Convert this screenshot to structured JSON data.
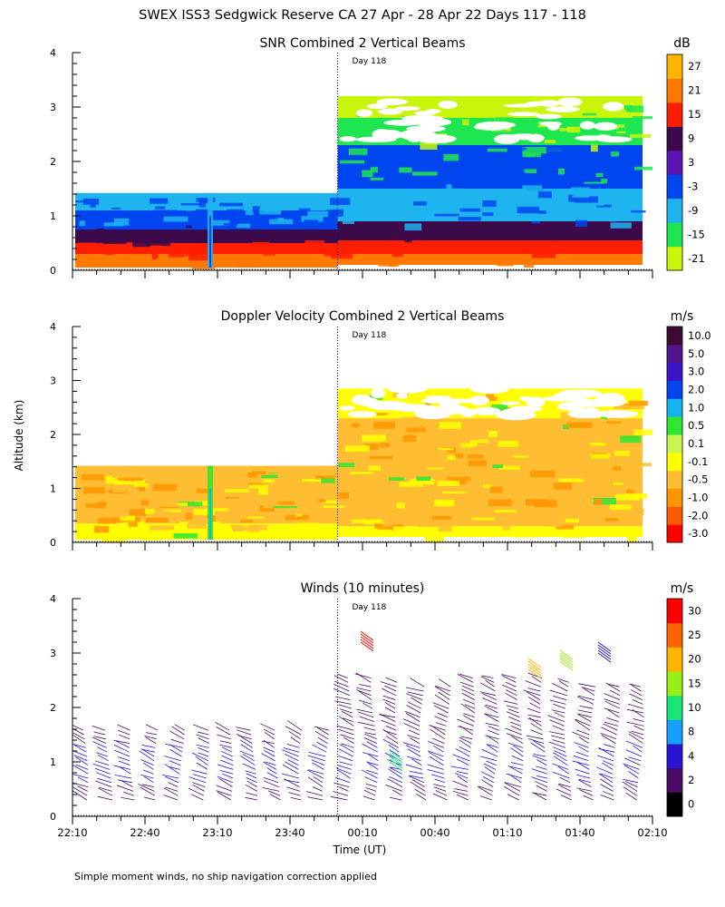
{
  "title": "SWEX ISS3 Sedgwick Reserve CA  27 Apr - 28 Apr 22 Days 117 - 118",
  "ylabel": "Altitude (km)",
  "xlabel": "Time (UT)",
  "footnote": "Simple moment winds, no ship navigation correction applied",
  "day_marker": "Day 118",
  "colors": {
    "snr_scale": [
      "#c8f50a",
      "#1ee650",
      "#1eb4f0",
      "#0046f0",
      "#5a14b4",
      "#3c0a4b",
      "#ff1e00",
      "#ff7800",
      "#ffb400"
    ],
    "vel_scale": [
      "#ff0000",
      "#ff5a00",
      "#ff9600",
      "#ffbe32",
      "#ffff00",
      "#c8f550",
      "#2fe632",
      "#14b4f0",
      "#0046f0",
      "#3c14c8",
      "#50148c",
      "#3c0a32"
    ],
    "wind_scale": [
      "#000000",
      "#4b0a64",
      "#2814d2",
      "#14a0ff",
      "#14e678",
      "#96f014",
      "#ffb400",
      "#ff6400",
      "#ff0000"
    ]
  },
  "chart_data": [
    {
      "type": "heatmap",
      "title": "SNR Combined 2 Vertical Beams",
      "unit": "dB",
      "xlabel": "Time (UT)",
      "ylabel": "Altitude (km)",
      "x_ticks": [
        "22:10",
        "22:40",
        "23:10",
        "23:40",
        "00:10",
        "00:40",
        "01:10",
        "01:40",
        "02:10"
      ],
      "y_ticks": [
        "0",
        "1",
        "2",
        "3",
        "4"
      ],
      "ylim": [
        0,
        4
      ],
      "colorbar_labels": [
        "-21",
        "-15",
        "-9",
        "-3",
        "3",
        "9",
        "15",
        "21",
        "27"
      ],
      "layers_day117": [
        {
          "altitude_km": [
            0.05,
            0.3
          ],
          "snr_db": 21
        },
        {
          "altitude_km": [
            0.3,
            0.5
          ],
          "snr_db": 15
        },
        {
          "altitude_km": [
            0.5,
            0.75
          ],
          "snr_db": 9
        },
        {
          "altitude_km": [
            0.75,
            1.1
          ],
          "snr_db": -3
        },
        {
          "altitude_km": [
            1.1,
            1.42
          ],
          "snr_db": -9
        }
      ],
      "layers_day118": [
        {
          "altitude_km": [
            0.1,
            0.3
          ],
          "snr_db": 21
        },
        {
          "altitude_km": [
            0.3,
            0.55
          ],
          "snr_db": 15
        },
        {
          "altitude_km": [
            0.55,
            0.9
          ],
          "snr_db": 9
        },
        {
          "altitude_km": [
            0.9,
            1.5
          ],
          "snr_db": -9
        },
        {
          "altitude_km": [
            1.5,
            2.3
          ],
          "snr_db": -3
        },
        {
          "altitude_km": [
            2.3,
            2.8
          ],
          "snr_db": -15
        },
        {
          "altitude_km": [
            2.8,
            3.2
          ],
          "snr_db": -21
        }
      ]
    },
    {
      "type": "heatmap",
      "title": "Doppler Velocity Combined 2 Vertical Beams",
      "unit": "m/s",
      "xlabel": "Time (UT)",
      "ylabel": "Altitude (km)",
      "x_ticks": [
        "22:10",
        "22:40",
        "23:10",
        "23:40",
        "00:10",
        "00:40",
        "01:10",
        "01:40",
        "02:10"
      ],
      "y_ticks": [
        "0",
        "1",
        "2",
        "3",
        "4"
      ],
      "ylim": [
        0,
        4
      ],
      "colorbar_labels": [
        "-3.0",
        "-2.0",
        "-1.0",
        "-0.5",
        "-0.1",
        "0.1",
        "0.5",
        "1.0",
        "2.0",
        "3.0",
        "5.0",
        "10.0"
      ],
      "layers_day117": [
        {
          "altitude_km": [
            0.05,
            0.35
          ],
          "velocity_ms": -0.05
        },
        {
          "altitude_km": [
            0.35,
            1.42
          ],
          "velocity_ms": -0.4
        }
      ],
      "layers_day118": [
        {
          "altitude_km": [
            0.1,
            0.3
          ],
          "velocity_ms": -0.05
        },
        {
          "altitude_km": [
            0.3,
            2.3
          ],
          "velocity_ms": -0.4
        },
        {
          "altitude_km": [
            2.3,
            2.85
          ],
          "velocity_ms": -0.05
        }
      ]
    },
    {
      "type": "scatter",
      "title": "Winds (10 minutes)",
      "unit": "m/s",
      "xlabel": "Time (UT)",
      "ylabel": "Altitude (km)",
      "x_ticks": [
        "22:10",
        "22:40",
        "23:10",
        "23:40",
        "00:10",
        "00:40",
        "01:10",
        "01:40",
        "02:10"
      ],
      "y_ticks": [
        "0",
        "1",
        "2",
        "3",
        "4"
      ],
      "ylim": [
        0,
        4
      ],
      "colorbar_labels": [
        "0",
        "2",
        "4",
        "8",
        "10",
        "15",
        "20",
        "25",
        "30"
      ],
      "profile_times_min": [
        5,
        15,
        25,
        35,
        45,
        55,
        65,
        75,
        85,
        95,
        105,
        115,
        125,
        135,
        145,
        155,
        165,
        175,
        185,
        195,
        205,
        215,
        225,
        235
      ],
      "top_altitude_km": [
        1.65,
        1.65,
        1.65,
        1.65,
        1.65,
        1.65,
        1.65,
        1.65,
        1.65,
        1.65,
        1.65,
        2.6,
        2.55,
        2.5,
        2.45,
        2.45,
        2.55,
        2.55,
        2.6,
        2.6,
        2.5,
        2.45,
        2.4,
        2.45
      ]
    }
  ]
}
